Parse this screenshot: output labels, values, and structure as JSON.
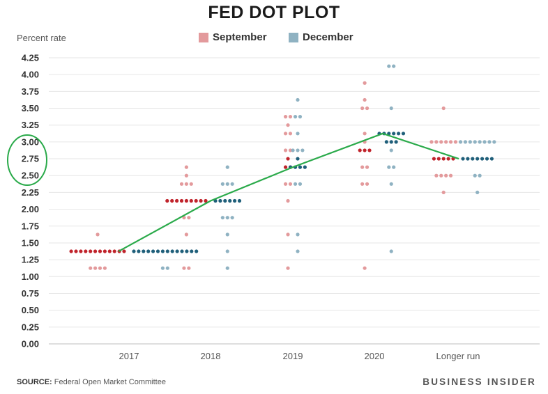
{
  "title": "FED DOT PLOT",
  "source_label": "SOURCE:",
  "source_text": "Federal Open Market Committee",
  "brand": "BUSINESS INSIDER",
  "colors": {
    "september_light": "#e39a9c",
    "september_median": "#c0232b",
    "december_light": "#8fb2c2",
    "december_median": "#1f5f7a",
    "annotation_line": "#2aaa4a",
    "annotation_circle": "#2aaa4a",
    "grid": "#e6e6e6"
  },
  "chart_data": {
    "type": "scatter",
    "ylabel": "Percent rate",
    "ylim": [
      0,
      4.25
    ],
    "yticks": [
      "0.00",
      "0.25",
      "0.50",
      "0.75",
      "1.00",
      "1.25",
      "1.50",
      "1.75",
      "2.00",
      "2.25",
      "2.50",
      "2.75",
      "3.00",
      "3.25",
      "3.50",
      "3.75",
      "4.00",
      "4.25"
    ],
    "categories": [
      "2017",
      "2018",
      "2019",
      "2020",
      "Longer run"
    ],
    "legend": [
      "September",
      "December"
    ],
    "grid": true,
    "series": [
      {
        "name": "September",
        "dots": [
          [
            {
              "rate": 1.625,
              "count": 1
            },
            {
              "rate": 1.375,
              "count": 12,
              "median": true
            },
            {
              "rate": 1.125,
              "count": 4
            }
          ],
          [
            {
              "rate": 2.625,
              "count": 1
            },
            {
              "rate": 2.5,
              "count": 1
            },
            {
              "rate": 2.375,
              "count": 3
            },
            {
              "rate": 2.125,
              "count": 9,
              "median": true
            },
            {
              "rate": 1.875,
              "count": 2
            },
            {
              "rate": 1.625,
              "count": 1
            },
            {
              "rate": 1.125,
              "count": 2
            }
          ],
          [
            {
              "rate": 3.375,
              "count": 2
            },
            {
              "rate": 3.25,
              "count": 1
            },
            {
              "rate": 3.125,
              "count": 2
            },
            {
              "rate": 2.875,
              "count": 2
            },
            {
              "rate": 2.75,
              "count": 1,
              "median": true
            },
            {
              "rate": 2.625,
              "count": 2,
              "median": true
            },
            {
              "rate": 2.375,
              "count": 2
            },
            {
              "rate": 2.125,
              "count": 1
            },
            {
              "rate": 1.625,
              "count": 1
            },
            {
              "rate": 1.125,
              "count": 1
            }
          ],
          [
            {
              "rate": 3.875,
              "count": 1
            },
            {
              "rate": 3.625,
              "count": 1
            },
            {
              "rate": 3.5,
              "count": 2
            },
            {
              "rate": 3.125,
              "count": 1
            },
            {
              "rate": 3.0,
              "count": 1
            },
            {
              "rate": 2.875,
              "count": 3,
              "median": true
            },
            {
              "rate": 2.625,
              "count": 2
            },
            {
              "rate": 2.375,
              "count": 2
            },
            {
              "rate": 1.125,
              "count": 1
            }
          ],
          [
            {
              "rate": 3.5,
              "count": 1
            },
            {
              "rate": 3.0,
              "count": 6
            },
            {
              "rate": 2.75,
              "count": 5,
              "median": true
            },
            {
              "rate": 2.5,
              "count": 4
            },
            {
              "rate": 2.25,
              "count": 1
            }
          ]
        ]
      },
      {
        "name": "December",
        "dots": [
          [
            {
              "rate": 1.375,
              "count": 14,
              "median": true
            },
            {
              "rate": 1.125,
              "count": 2
            }
          ],
          [
            {
              "rate": 2.625,
              "count": 1
            },
            {
              "rate": 2.375,
              "count": 3
            },
            {
              "rate": 2.125,
              "count": 6,
              "median": true
            },
            {
              "rate": 1.875,
              "count": 3
            },
            {
              "rate": 1.625,
              "count": 1
            },
            {
              "rate": 1.375,
              "count": 1
            },
            {
              "rate": 1.125,
              "count": 1
            }
          ],
          [
            {
              "rate": 3.625,
              "count": 1
            },
            {
              "rate": 3.375,
              "count": 2
            },
            {
              "rate": 3.125,
              "count": 1
            },
            {
              "rate": 2.875,
              "count": 3
            },
            {
              "rate": 2.75,
              "count": 1,
              "median": true
            },
            {
              "rate": 2.625,
              "count": 4,
              "median": true
            },
            {
              "rate": 2.375,
              "count": 2
            },
            {
              "rate": 1.625,
              "count": 1
            },
            {
              "rate": 1.375,
              "count": 1
            }
          ],
          [
            {
              "rate": 4.125,
              "count": 2
            },
            {
              "rate": 3.5,
              "count": 1
            },
            {
              "rate": 3.125,
              "count": 6,
              "median": true
            },
            {
              "rate": 3.0,
              "count": 3,
              "median": true
            },
            {
              "rate": 2.875,
              "count": 1
            },
            {
              "rate": 2.625,
              "count": 2
            },
            {
              "rate": 2.375,
              "count": 1
            },
            {
              "rate": 1.375,
              "count": 1
            }
          ],
          [
            {
              "rate": 3.0,
              "count": 8
            },
            {
              "rate": 2.75,
              "count": 7,
              "median": true
            },
            {
              "rate": 2.5,
              "count": 2
            },
            {
              "rate": 2.25,
              "count": 1
            }
          ]
        ]
      }
    ],
    "annotation": {
      "type": "median-path",
      "points": [
        {
          "category": "2017",
          "rate": 1.375
        },
        {
          "category": "2018",
          "rate": 2.125
        },
        {
          "category": "2019",
          "rate": 2.625
        },
        {
          "category": "2020",
          "rate": 3.125
        },
        {
          "category": "Longer run",
          "rate": 2.75
        }
      ],
      "circled_ticks": [
        "2.50",
        "2.75",
        "3.00"
      ]
    }
  }
}
